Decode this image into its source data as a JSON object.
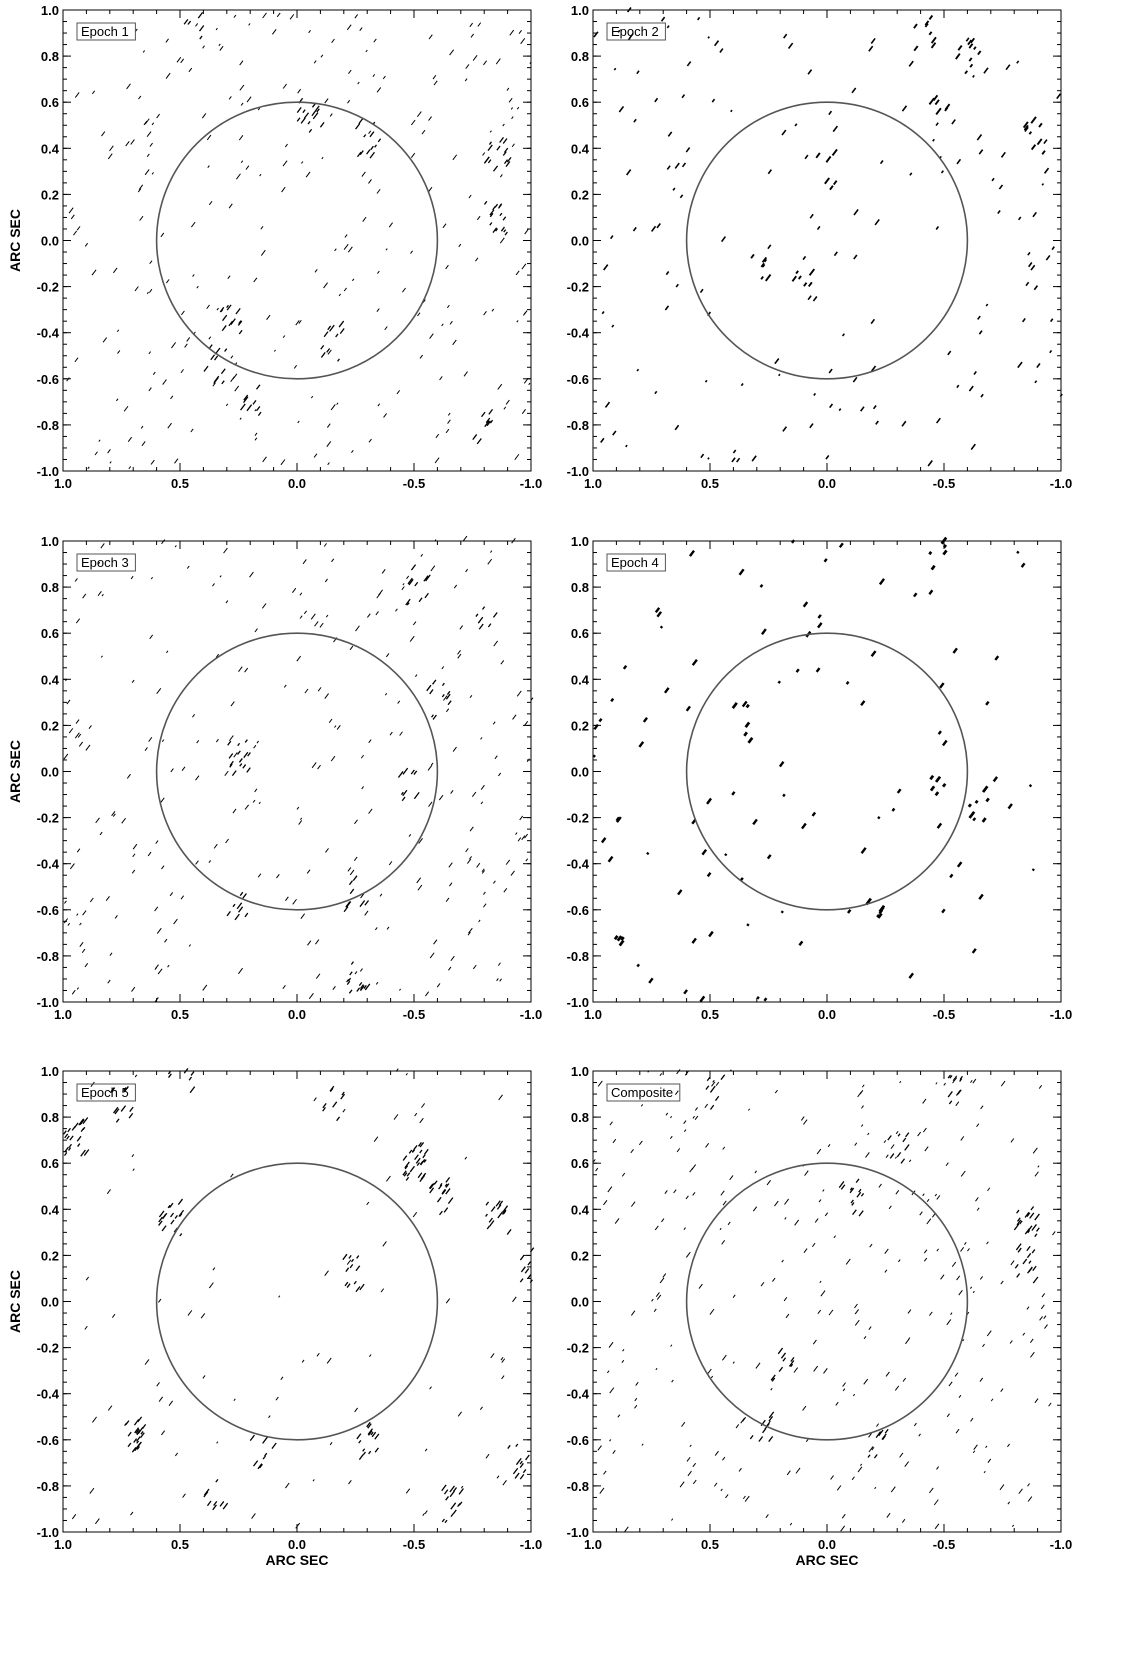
{
  "figure": {
    "x_axis_title": "ARC SEC",
    "y_axis_title": "ARC SEC"
  },
  "chart_data": [
    {
      "type": "scatter",
      "label": "Epoch 1",
      "xlabel": "",
      "ylabel": "ARC SEC",
      "xlim": [
        1.0,
        -1.0
      ],
      "ylim": [
        -1.0,
        1.0
      ],
      "xticks": [
        "1.0",
        "0.5",
        "0.0",
        "-0.5",
        "-1.0"
      ],
      "yticks": [
        "1.0",
        "0.8",
        "0.6",
        "0.4",
        "0.2",
        "0.0",
        "-0.2",
        "-0.4",
        "-0.6",
        "-0.8",
        "-1.0"
      ],
      "circle": {
        "center": [
          0.0,
          0.0
        ],
        "radius": 0.6
      },
      "clusters": [
        {
          "x": -0.05,
          "y": 0.52,
          "n": 14
        },
        {
          "x": -0.3,
          "y": 0.43,
          "n": 12
        },
        {
          "x": -0.85,
          "y": 0.36,
          "n": 14
        },
        {
          "x": -0.85,
          "y": 0.1,
          "n": 14
        },
        {
          "x": -0.15,
          "y": -0.45,
          "n": 10
        },
        {
          "x": 0.28,
          "y": -0.37,
          "n": 12
        },
        {
          "x": 0.35,
          "y": -0.55,
          "n": 10
        },
        {
          "x": 0.45,
          "y": 0.95,
          "n": 5
        },
        {
          "x": 0.2,
          "y": -0.68,
          "n": 8
        },
        {
          "x": -0.8,
          "y": -0.82,
          "n": 8
        }
      ],
      "scatter_count": 260
    },
    {
      "type": "scatter",
      "label": "Epoch 2",
      "xlabel": "",
      "ylabel": "",
      "xlim": [
        1.0,
        -1.0
      ],
      "ylim": [
        -1.0,
        1.0
      ],
      "xticks": [
        "1.0",
        "0.5",
        "0.0",
        "-0.5",
        "-1.0"
      ],
      "yticks": [
        "1.0",
        "0.8",
        "0.6",
        "0.4",
        "0.2",
        "0.0",
        "-0.2",
        "-0.4",
        "-0.6",
        "-0.8",
        "-1.0"
      ],
      "circle": {
        "center": [
          0.0,
          0.0
        ],
        "radius": 0.6
      },
      "clusters": [
        {
          "x": -0.6,
          "y": 0.8,
          "n": 10
        },
        {
          "x": -0.42,
          "y": 0.88,
          "n": 8
        },
        {
          "x": -0.88,
          "y": 0.45,
          "n": 8
        },
        {
          "x": 0.1,
          "y": -0.12,
          "n": 6
        },
        {
          "x": 0.3,
          "y": -0.15,
          "n": 6
        },
        {
          "x": -0.48,
          "y": 0.58,
          "n": 6
        },
        {
          "x": 0.0,
          "y": 0.3,
          "n": 6
        }
      ],
      "scatter_count": 150
    },
    {
      "type": "scatter",
      "label": "Epoch 3",
      "xlabel": "",
      "ylabel": "ARC SEC",
      "xlim": [
        1.0,
        -1.0
      ],
      "ylim": [
        -1.0,
        1.0
      ],
      "xticks": [
        "1.0",
        "0.5",
        "0.0",
        "-0.5",
        "-1.0"
      ],
      "yticks": [
        "1.0",
        "0.8",
        "0.6",
        "0.4",
        "0.2",
        "0.0",
        "-0.2",
        "-0.4",
        "-0.6",
        "-0.8",
        "-1.0"
      ],
      "circle": {
        "center": [
          0.0,
          0.0
        ],
        "radius": 0.6
      },
      "clusters": [
        {
          "x": 0.25,
          "y": 0.05,
          "n": 14
        },
        {
          "x": -0.5,
          "y": 0.8,
          "n": 10
        },
        {
          "x": -0.6,
          "y": 0.3,
          "n": 10
        },
        {
          "x": -0.25,
          "y": -0.9,
          "n": 12
        },
        {
          "x": -0.48,
          "y": -0.05,
          "n": 8
        },
        {
          "x": -0.25,
          "y": -0.55,
          "n": 8
        },
        {
          "x": 0.25,
          "y": -0.6,
          "n": 8
        },
        {
          "x": -0.8,
          "y": 0.65,
          "n": 6
        }
      ],
      "scatter_count": 260
    },
    {
      "type": "scatter",
      "label": "Epoch 4",
      "xlabel": "",
      "ylabel": "",
      "xlim": [
        1.0,
        -1.0
      ],
      "ylim": [
        -1.0,
        1.0
      ],
      "xticks": [
        "1.0",
        "0.5",
        "0.0",
        "-0.5",
        "-1.0"
      ],
      "yticks": [
        "1.0",
        "0.8",
        "0.6",
        "0.4",
        "0.2",
        "0.0",
        "-0.2",
        "-0.4",
        "-0.6",
        "-0.8",
        "-1.0"
      ],
      "circle": {
        "center": [
          0.0,
          0.0
        ],
        "radius": 0.6
      },
      "clusters": [
        {
          "x": -0.48,
          "y": 0.95,
          "n": 5
        },
        {
          "x": 0.36,
          "y": 0.2,
          "n": 5
        },
        {
          "x": -0.45,
          "y": -0.05,
          "n": 5
        },
        {
          "x": -0.65,
          "y": -0.15,
          "n": 6
        },
        {
          "x": -0.2,
          "y": -0.65,
          "n": 5
        },
        {
          "x": 0.9,
          "y": -0.7,
          "n": 4
        }
      ],
      "scatter_count": 90
    },
    {
      "type": "scatter",
      "label": "Epoch 5",
      "xlabel": "ARC SEC",
      "ylabel": "ARC SEC",
      "xlim": [
        1.0,
        -1.0
      ],
      "ylim": [
        -1.0,
        1.0
      ],
      "xticks": [
        "1.0",
        "0.5",
        "0.0",
        "-0.5",
        "-1.0"
      ],
      "yticks": [
        "1.0",
        "0.8",
        "0.6",
        "0.4",
        "0.2",
        "0.0",
        "-0.2",
        "-0.4",
        "-0.6",
        "-0.8",
        "-1.0"
      ],
      "circle": {
        "center": [
          0.0,
          0.0
        ],
        "radius": 0.6
      },
      "clusters": [
        {
          "x": 0.95,
          "y": 0.7,
          "n": 20
        },
        {
          "x": 0.75,
          "y": 0.85,
          "n": 10
        },
        {
          "x": 0.55,
          "y": 0.35,
          "n": 16
        },
        {
          "x": 0.5,
          "y": 0.98,
          "n": 10
        },
        {
          "x": -0.5,
          "y": 0.6,
          "n": 28
        },
        {
          "x": -0.6,
          "y": 0.45,
          "n": 16
        },
        {
          "x": -0.85,
          "y": 0.35,
          "n": 14
        },
        {
          "x": -1.0,
          "y": 0.15,
          "n": 22
        },
        {
          "x": -0.22,
          "y": 0.12,
          "n": 12
        },
        {
          "x": 0.7,
          "y": -0.6,
          "n": 22
        },
        {
          "x": -0.3,
          "y": -0.62,
          "n": 14
        },
        {
          "x": 0.15,
          "y": -0.65,
          "n": 8
        },
        {
          "x": -0.65,
          "y": -0.9,
          "n": 14
        },
        {
          "x": -0.95,
          "y": -0.7,
          "n": 10
        },
        {
          "x": 0.35,
          "y": -0.85,
          "n": 8
        },
        {
          "x": -0.15,
          "y": 0.85,
          "n": 8
        }
      ],
      "scatter_count": 80
    },
    {
      "type": "scatter",
      "label": "Composite",
      "xlabel": "ARC SEC",
      "ylabel": "",
      "xlim": [
        1.0,
        -1.0
      ],
      "ylim": [
        -1.0,
        1.0
      ],
      "xticks": [
        "1.0",
        "0.5",
        "0.0",
        "-0.5",
        "-1.0"
      ],
      "yticks": [
        "1.0",
        "0.8",
        "0.6",
        "0.4",
        "0.2",
        "0.0",
        "-0.2",
        "-0.4",
        "-0.6",
        "-0.8",
        "-1.0"
      ],
      "circle": {
        "center": [
          0.0,
          0.0
        ],
        "radius": 0.6
      },
      "clusters": [
        {
          "x": -0.85,
          "y": 0.35,
          "n": 16
        },
        {
          "x": -0.85,
          "y": 0.15,
          "n": 12
        },
        {
          "x": -0.1,
          "y": 0.45,
          "n": 12
        },
        {
          "x": 0.2,
          "y": -0.3,
          "n": 10
        },
        {
          "x": 0.28,
          "y": -0.55,
          "n": 8
        },
        {
          "x": -0.3,
          "y": 0.65,
          "n": 8
        },
        {
          "x": -0.55,
          "y": 0.9,
          "n": 8
        },
        {
          "x": -0.2,
          "y": -0.6,
          "n": 6
        },
        {
          "x": 0.5,
          "y": 0.9,
          "n": 6
        }
      ],
      "scatter_count": 300
    }
  ]
}
